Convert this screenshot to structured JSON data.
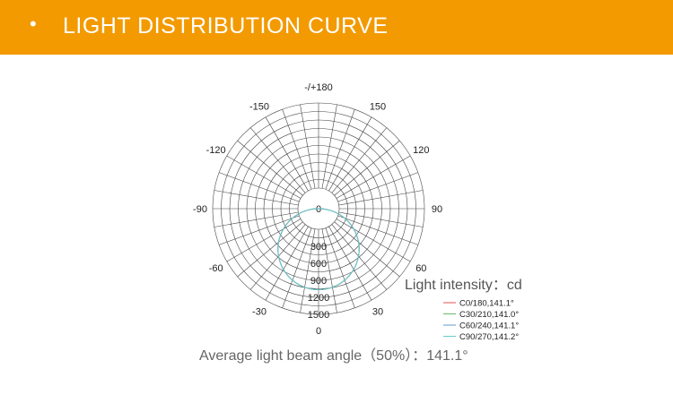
{
  "header": {
    "bullet": "•",
    "title": "LIGHT DISTRIBUTION CURVE"
  },
  "colors": {
    "header_bg": "#F39A00",
    "grid": "#444444",
    "text": "#222222",
    "unit_text": "#555555"
  },
  "chart_data": {
    "type": "polar",
    "unit_label": "Light intensity：cd",
    "angle_labels": [
      {
        "angle": 180,
        "text": "-/+180"
      },
      {
        "angle": 150,
        "text": "150"
      },
      {
        "angle": 120,
        "text": "120"
      },
      {
        "angle": 90,
        "text": "90"
      },
      {
        "angle": 60,
        "text": "60"
      },
      {
        "angle": 30,
        "text": "30"
      },
      {
        "angle": 0,
        "text": "0"
      },
      {
        "angle": -30,
        "text": "-30"
      },
      {
        "angle": -60,
        "text": "-60"
      },
      {
        "angle": -90,
        "text": "-90"
      },
      {
        "angle": -120,
        "text": "-120"
      },
      {
        "angle": -150,
        "text": "-150"
      }
    ],
    "radial_ticks": [
      0,
      300,
      600,
      900,
      1200,
      1500
    ],
    "radial_max": 1500,
    "grid": true,
    "legend_position": "bottom-right",
    "series": [
      {
        "name": "C0/180,141.1°",
        "color": "#E05050",
        "beam_angle": 141.1,
        "peak": 1150
      },
      {
        "name": "C30/210,141.0°",
        "color": "#66BB66",
        "beam_angle": 141.0,
        "peak": 1150
      },
      {
        "name": "C60/240,141.1°",
        "color": "#6699CC",
        "beam_angle": 141.1,
        "peak": 1150
      },
      {
        "name": "C90/270,141.2°",
        "color": "#66CCCC",
        "beam_angle": 141.2,
        "peak": 1150
      }
    ],
    "footnote": "Average light beam angle（50%）：141.1°"
  }
}
